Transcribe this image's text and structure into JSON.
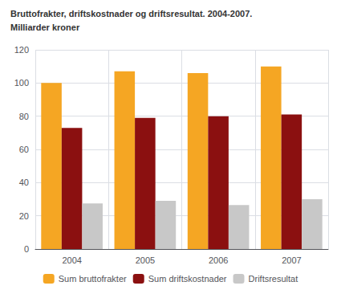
{
  "chart_data": {
    "type": "bar",
    "title": "Bruttofrakter, driftskostnader og driftsresultat. 2004-2007.",
    "subtitle": "Milliarder kroner",
    "categories": [
      "2004",
      "2005",
      "2006",
      "2007"
    ],
    "series": [
      {
        "name": "Sum bruttofrakter",
        "color": "#F5A623",
        "values": [
          100,
          107,
          106,
          110
        ]
      },
      {
        "name": "Sum driftskostnader",
        "color": "#8B1010",
        "values": [
          73,
          79,
          80,
          81
        ]
      },
      {
        "name": "Driftsresultat",
        "color": "#C8C8C8",
        "values": [
          27.5,
          29,
          26.5,
          30
        ]
      }
    ],
    "ylim": [
      0,
      120
    ],
    "yticks": [
      0,
      20,
      40,
      60,
      80,
      100,
      120
    ],
    "grid": true,
    "legend": "bottom"
  }
}
